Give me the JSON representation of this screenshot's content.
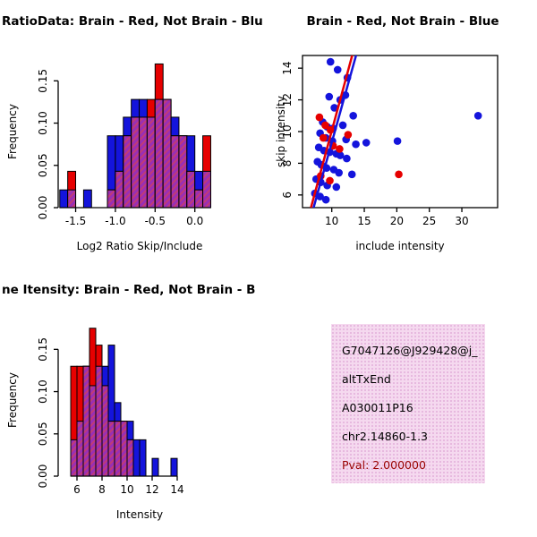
{
  "page": {
    "background": "#ffffff"
  },
  "colors": {
    "red": "#e60000",
    "blue": "#1414dc",
    "overlap": "#9a2fb4",
    "overlap_hatch": "#c13a77",
    "axis": "#000000",
    "text": "#000000",
    "info_bg": "#f5d9ef",
    "info_dot": "#e2aeda",
    "pval_text": "#990000"
  },
  "chart_data": [
    {
      "type": "histogram",
      "title": "RatioData: Brain - Red, Not Brain - Blu",
      "xlabel": "Log2 Ratio Skip/Include",
      "ylabel": "Frequency",
      "xlim": [
        -1.72,
        0.33
      ],
      "ylim": [
        0,
        0.18
      ],
      "xticks": [
        -1.5,
        -1.0,
        -0.5,
        0.0
      ],
      "xtick_labels": [
        "-1.5",
        "-1.0",
        "-0.5",
        "0.0"
      ],
      "yticks": [
        0,
        0.05,
        0.1,
        0.15
      ],
      "ytick_labels": [
        "0.00",
        "0.05",
        "0.10",
        "0.15"
      ],
      "bin_width": 0.1,
      "bins": [
        -1.7,
        -1.6,
        -1.5,
        -1.4,
        -1.3,
        -1.2,
        -1.1,
        -1.0,
        -0.9,
        -0.8,
        -0.7,
        -0.6,
        -0.5,
        -0.4,
        -0.3,
        -0.2,
        -0.1,
        0.0,
        0.1
      ],
      "series": [
        {
          "name": "Not Brain",
          "color": "blue",
          "values": [
            0.021,
            0.021,
            0,
            0.021,
            0,
            0,
            0.085,
            0.085,
            0.107,
            0.128,
            0.128,
            0.107,
            0.128,
            0.128,
            0.107,
            0.085,
            0.085,
            0.043,
            0.043
          ]
        },
        {
          "name": "Brain",
          "color": "red",
          "values": [
            0,
            0.043,
            0,
            0,
            0,
            0,
            0.021,
            0.043,
            0.085,
            0.107,
            0.107,
            0.128,
            0.17,
            0.128,
            0.085,
            0.085,
            0.043,
            0.021,
            0.085
          ]
        }
      ]
    },
    {
      "type": "scatter",
      "title": "Brain - Red, Not Brain - Blue",
      "xlabel": "include intensity",
      "ylabel": "skip intensity",
      "xlim": [
        5.5,
        35.5
      ],
      "ylim": [
        5.2,
        14.8
      ],
      "xticks": [
        10,
        15,
        20,
        25,
        30
      ],
      "xtick_labels": [
        "10",
        "15",
        "20",
        "25",
        "30"
      ],
      "yticks": [
        6,
        8,
        10,
        12,
        14
      ],
      "ytick_labels": [
        "6",
        "8",
        "10",
        "12",
        "14"
      ],
      "series": [
        {
          "name": "Not Brain",
          "color": "blue",
          "points": [
            [
              9.8,
              14.4
            ],
            [
              10.9,
              13.9
            ],
            [
              12.4,
              13.4
            ],
            [
              9.6,
              12.2
            ],
            [
              11.3,
              12.0
            ],
            [
              12.1,
              12.3
            ],
            [
              10.4,
              11.5
            ],
            [
              13.3,
              11.0
            ],
            [
              32.5,
              11.0
            ],
            [
              8.6,
              10.6
            ],
            [
              9.3,
              10.3
            ],
            [
              10.2,
              10.2
            ],
            [
              11.7,
              10.4
            ],
            [
              8.2,
              9.9
            ],
            [
              9.1,
              9.6
            ],
            [
              10.1,
              9.4
            ],
            [
              12.2,
              9.5
            ],
            [
              13.7,
              9.2
            ],
            [
              15.3,
              9.3
            ],
            [
              20.1,
              9.4
            ],
            [
              8.0,
              9.0
            ],
            [
              8.8,
              8.8
            ],
            [
              9.7,
              8.7
            ],
            [
              10.7,
              8.6
            ],
            [
              11.3,
              8.5
            ],
            [
              12.3,
              8.3
            ],
            [
              7.8,
              8.1
            ],
            [
              8.4,
              7.9
            ],
            [
              9.2,
              7.7
            ],
            [
              10.3,
              7.6
            ],
            [
              11.1,
              7.4
            ],
            [
              13.1,
              7.3
            ],
            [
              7.6,
              7.0
            ],
            [
              8.3,
              6.8
            ],
            [
              9.3,
              6.6
            ],
            [
              10.7,
              6.5
            ],
            [
              7.4,
              6.1
            ],
            [
              8.2,
              5.9
            ],
            [
              9.1,
              5.7
            ]
          ]
        },
        {
          "name": "Brain",
          "color": "red",
          "points": [
            [
              8.1,
              10.9
            ],
            [
              9.0,
              10.4
            ],
            [
              9.8,
              10.1
            ],
            [
              8.7,
              9.6
            ],
            [
              10.2,
              9.1
            ],
            [
              12.5,
              9.8
            ],
            [
              11.2,
              8.9
            ],
            [
              20.3,
              7.3
            ],
            [
              8.3,
              7.2
            ],
            [
              9.7,
              6.9
            ]
          ]
        }
      ],
      "fit_lines": [
        {
          "color": "red",
          "x": [
            6.8,
            13.4
          ],
          "y": [
            5.2,
            15.2
          ]
        },
        {
          "color": "blue",
          "x": [
            7.0,
            14.0
          ],
          "y": [
            4.9,
            15.2
          ]
        }
      ]
    },
    {
      "type": "histogram",
      "title": "ne Itensity: Brain - Red, Not Brain - B",
      "xlabel": "Intensity",
      "ylabel": "Frequency",
      "xlim": [
        4.5,
        17.5
      ],
      "ylim": [
        0,
        0.18
      ],
      "xticks": [
        6,
        8,
        10,
        12,
        14
      ],
      "xtick_labels": [
        "6",
        "8",
        "10",
        "12",
        "14"
      ],
      "yticks": [
        0,
        0.05,
        0.1,
        0.15
      ],
      "ytick_labels": [
        "0.00",
        "0.05",
        "0.10",
        "0.15"
      ],
      "bin_width": 0.5,
      "bins": [
        5.5,
        6.0,
        6.5,
        7.0,
        7.5,
        8.0,
        8.5,
        9.0,
        9.5,
        10.0,
        10.5,
        11.0,
        11.5,
        12.0,
        12.5,
        13.0,
        13.5
      ],
      "series": [
        {
          "name": "Not Brain",
          "color": "blue",
          "values": [
            0.043,
            0.065,
            0.13,
            0.107,
            0.13,
            0.13,
            0.155,
            0.087,
            0.065,
            0.065,
            0.043,
            0.043,
            0,
            0.021,
            0,
            0,
            0.021
          ]
        },
        {
          "name": "Brain",
          "color": "red",
          "values": [
            0.13,
            0.13,
            0.13,
            0.175,
            0.155,
            0.107,
            0.065,
            0.065,
            0.065,
            0.043,
            0,
            0,
            0,
            0,
            0,
            0,
            0
          ]
        }
      ]
    }
  ],
  "info_box": {
    "lines": [
      "G7047126@J929428@j_",
      "altTxEnd",
      "A030011P16",
      "chr2.14860-1.3"
    ],
    "pval": "Pval: 2.000000"
  }
}
